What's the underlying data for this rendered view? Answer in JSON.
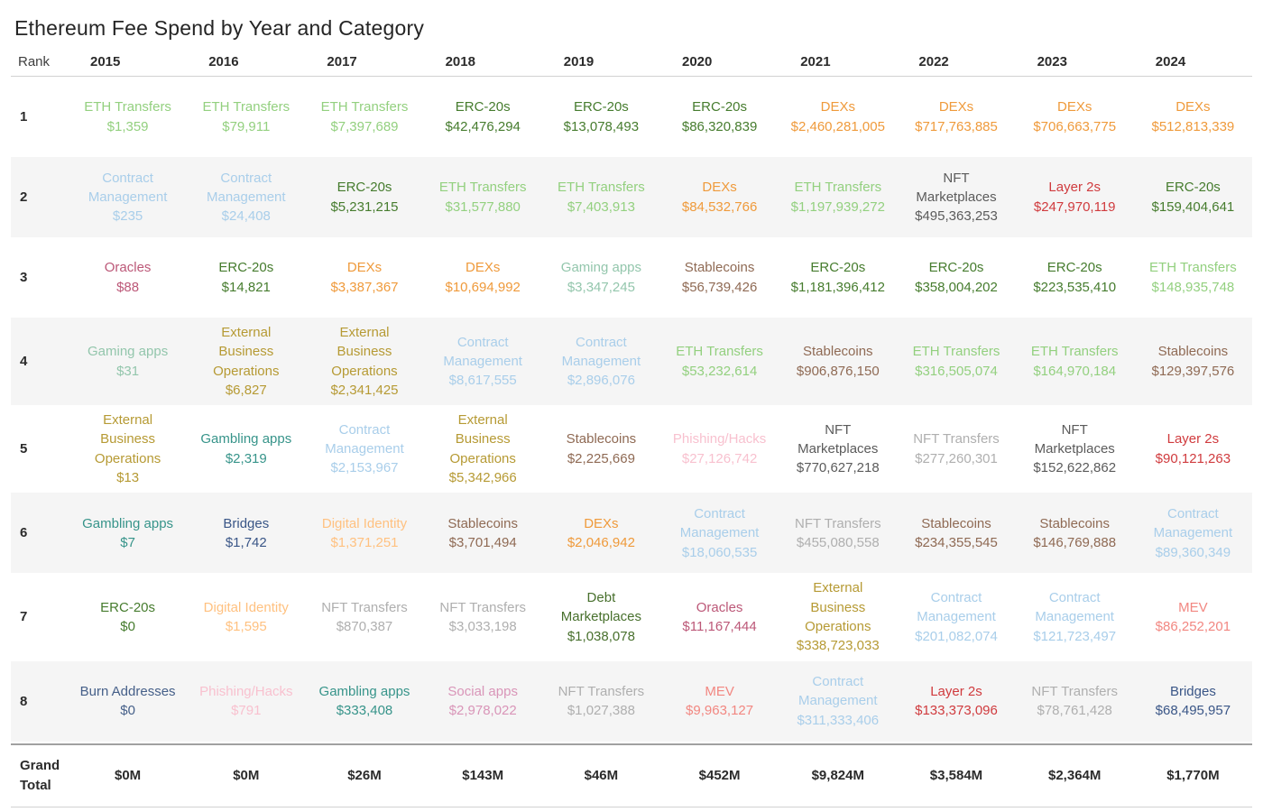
{
  "chart_data": {
    "type": "table",
    "title": "Ethereum Fee Spend by Year and Category",
    "rank_column_header": "Rank",
    "years": [
      "2015",
      "2016",
      "2017",
      "2018",
      "2019",
      "2020",
      "2021",
      "2022",
      "2023",
      "2024"
    ],
    "layout": {
      "zebra_striping": "ranks 2,4,6,8 shaded #f5f5f5",
      "cell_format": "category name above dollar value, both colored by category",
      "grid": "horizontal rules under header and around grand total only"
    },
    "category_colors": {
      "ETH Transfers": "#93D07F",
      "ERC-20s": "#467C2E",
      "DEXs": "#EF9A3B",
      "Contract Management": "#A9CEEA",
      "NFT Marketplaces": "#5B5B5B",
      "Layer 2s": "#D03B3E",
      "Oracles": "#BC5878",
      "Gaming apps": "#93C6AC",
      "Stablecoins": "#8F6A54",
      "External Business Operations": "#B69A34",
      "Gambling apps": "#37948A",
      "Bridges": "#3A5687",
      "Digital Identity": "#FFC180",
      "Phishing/Hacks": "#F8C1CF",
      "NFT Transfers": "#AFAFAF",
      "MEV": "#F28781",
      "Debt Marketplaces": "#48702D",
      "Social apps": "#D995B8",
      "Burn Addresses": "#466089"
    },
    "rows": [
      {
        "rank": "1",
        "cells": [
          {
            "category": "ETH Transfers",
            "value": "$1,359"
          },
          {
            "category": "ETH Transfers",
            "value": "$79,911"
          },
          {
            "category": "ETH Transfers",
            "value": "$7,397,689"
          },
          {
            "category": "ERC-20s",
            "value": "$42,476,294"
          },
          {
            "category": "ERC-20s",
            "value": "$13,078,493"
          },
          {
            "category": "ERC-20s",
            "value": "$86,320,839"
          },
          {
            "category": "DEXs",
            "value": "$2,460,281,005"
          },
          {
            "category": "DEXs",
            "value": "$717,763,885"
          },
          {
            "category": "DEXs",
            "value": "$706,663,775"
          },
          {
            "category": "DEXs",
            "value": "$512,813,339"
          }
        ]
      },
      {
        "rank": "2",
        "cells": [
          {
            "category": "Contract Management",
            "value": "$235"
          },
          {
            "category": "Contract Management",
            "value": "$24,408"
          },
          {
            "category": "ERC-20s",
            "value": "$5,231,215"
          },
          {
            "category": "ETH Transfers",
            "value": "$31,577,880"
          },
          {
            "category": "ETH Transfers",
            "value": "$7,403,913"
          },
          {
            "category": "DEXs",
            "value": "$84,532,766"
          },
          {
            "category": "ETH Transfers",
            "value": "$1,197,939,272"
          },
          {
            "category": "NFT Marketplaces",
            "value": "$495,363,253"
          },
          {
            "category": "Layer 2s",
            "value": "$247,970,119"
          },
          {
            "category": "ERC-20s",
            "value": "$159,404,641"
          }
        ]
      },
      {
        "rank": "3",
        "cells": [
          {
            "category": "Oracles",
            "value": "$88"
          },
          {
            "category": "ERC-20s",
            "value": "$14,821"
          },
          {
            "category": "DEXs",
            "value": "$3,387,367"
          },
          {
            "category": "DEXs",
            "value": "$10,694,992"
          },
          {
            "category": "Gaming apps",
            "value": "$3,347,245"
          },
          {
            "category": "Stablecoins",
            "value": "$56,739,426"
          },
          {
            "category": "ERC-20s",
            "value": "$1,181,396,412"
          },
          {
            "category": "ERC-20s",
            "value": "$358,004,202"
          },
          {
            "category": "ERC-20s",
            "value": "$223,535,410"
          },
          {
            "category": "ETH Transfers",
            "value": "$148,935,748"
          }
        ]
      },
      {
        "rank": "4",
        "cells": [
          {
            "category": "Gaming apps",
            "value": "$31"
          },
          {
            "category": "External Business Operations",
            "value": "$6,827"
          },
          {
            "category": "External Business Operations",
            "value": "$2,341,425"
          },
          {
            "category": "Contract Management",
            "value": "$8,617,555"
          },
          {
            "category": "Contract Management",
            "value": "$2,896,076"
          },
          {
            "category": "ETH Transfers",
            "value": "$53,232,614"
          },
          {
            "category": "Stablecoins",
            "value": "$906,876,150"
          },
          {
            "category": "ETH Transfers",
            "value": "$316,505,074"
          },
          {
            "category": "ETH Transfers",
            "value": "$164,970,184"
          },
          {
            "category": "Stablecoins",
            "value": "$129,397,576"
          }
        ]
      },
      {
        "rank": "5",
        "cells": [
          {
            "category": "External Business Operations",
            "value": "$13"
          },
          {
            "category": "Gambling apps",
            "value": "$2,319"
          },
          {
            "category": "Contract Management",
            "value": "$2,153,967"
          },
          {
            "category": "External Business Operations",
            "value": "$5,342,966"
          },
          {
            "category": "Stablecoins",
            "value": "$2,225,669"
          },
          {
            "category": "Phishing/Hacks",
            "value": "$27,126,742"
          },
          {
            "category": "NFT Marketplaces",
            "value": "$770,627,218"
          },
          {
            "category": "NFT Transfers",
            "value": "$277,260,301"
          },
          {
            "category": "NFT Marketplaces",
            "value": "$152,622,862"
          },
          {
            "category": "Layer 2s",
            "value": "$90,121,263"
          }
        ]
      },
      {
        "rank": "6",
        "cells": [
          {
            "category": "Gambling apps",
            "value": "$7"
          },
          {
            "category": "Bridges",
            "value": "$1,742"
          },
          {
            "category": "Digital Identity",
            "value": "$1,371,251"
          },
          {
            "category": "Stablecoins",
            "value": "$3,701,494"
          },
          {
            "category": "DEXs",
            "value": "$2,046,942"
          },
          {
            "category": "Contract Management",
            "value": "$18,060,535"
          },
          {
            "category": "NFT Transfers",
            "value": "$455,080,558"
          },
          {
            "category": "Stablecoins",
            "value": "$234,355,545"
          },
          {
            "category": "Stablecoins",
            "value": "$146,769,888"
          },
          {
            "category": "Contract Management",
            "value": "$89,360,349"
          }
        ]
      },
      {
        "rank": "7",
        "cells": [
          {
            "category": "ERC-20s",
            "value": "$0"
          },
          {
            "category": "Digital Identity",
            "value": "$1,595"
          },
          {
            "category": "NFT Transfers",
            "value": "$870,387"
          },
          {
            "category": "NFT Transfers",
            "value": "$3,033,198"
          },
          {
            "category": "Debt Marketplaces",
            "value": "$1,038,078"
          },
          {
            "category": "Oracles",
            "value": "$11,167,444"
          },
          {
            "category": "External Business Operations",
            "value": "$338,723,033"
          },
          {
            "category": "Contract Management",
            "value": "$201,082,074"
          },
          {
            "category": "Contract Management",
            "value": "$121,723,497"
          },
          {
            "category": "MEV",
            "value": "$86,252,201"
          }
        ]
      },
      {
        "rank": "8",
        "cells": [
          {
            "category": "Burn Addresses",
            "value": "$0"
          },
          {
            "category": "Phishing/Hacks",
            "value": "$791"
          },
          {
            "category": "Gambling apps",
            "value": "$333,408"
          },
          {
            "category": "Social apps",
            "value": "$2,978,022"
          },
          {
            "category": "NFT Transfers",
            "value": "$1,027,388"
          },
          {
            "category": "MEV",
            "value": "$9,963,127"
          },
          {
            "category": "Contract Management",
            "value": "$311,333,406"
          },
          {
            "category": "Layer 2s",
            "value": "$133,373,096"
          },
          {
            "category": "NFT Transfers",
            "value": "$78,761,428"
          },
          {
            "category": "Bridges",
            "value": "$68,495,957"
          }
        ]
      }
    ],
    "grand_total": {
      "label": "Grand Total",
      "values": [
        "$0M",
        "$0M",
        "$26M",
        "$143M",
        "$46M",
        "$452M",
        "$9,824M",
        "$3,584M",
        "$2,364M",
        "$1,770M"
      ]
    }
  }
}
